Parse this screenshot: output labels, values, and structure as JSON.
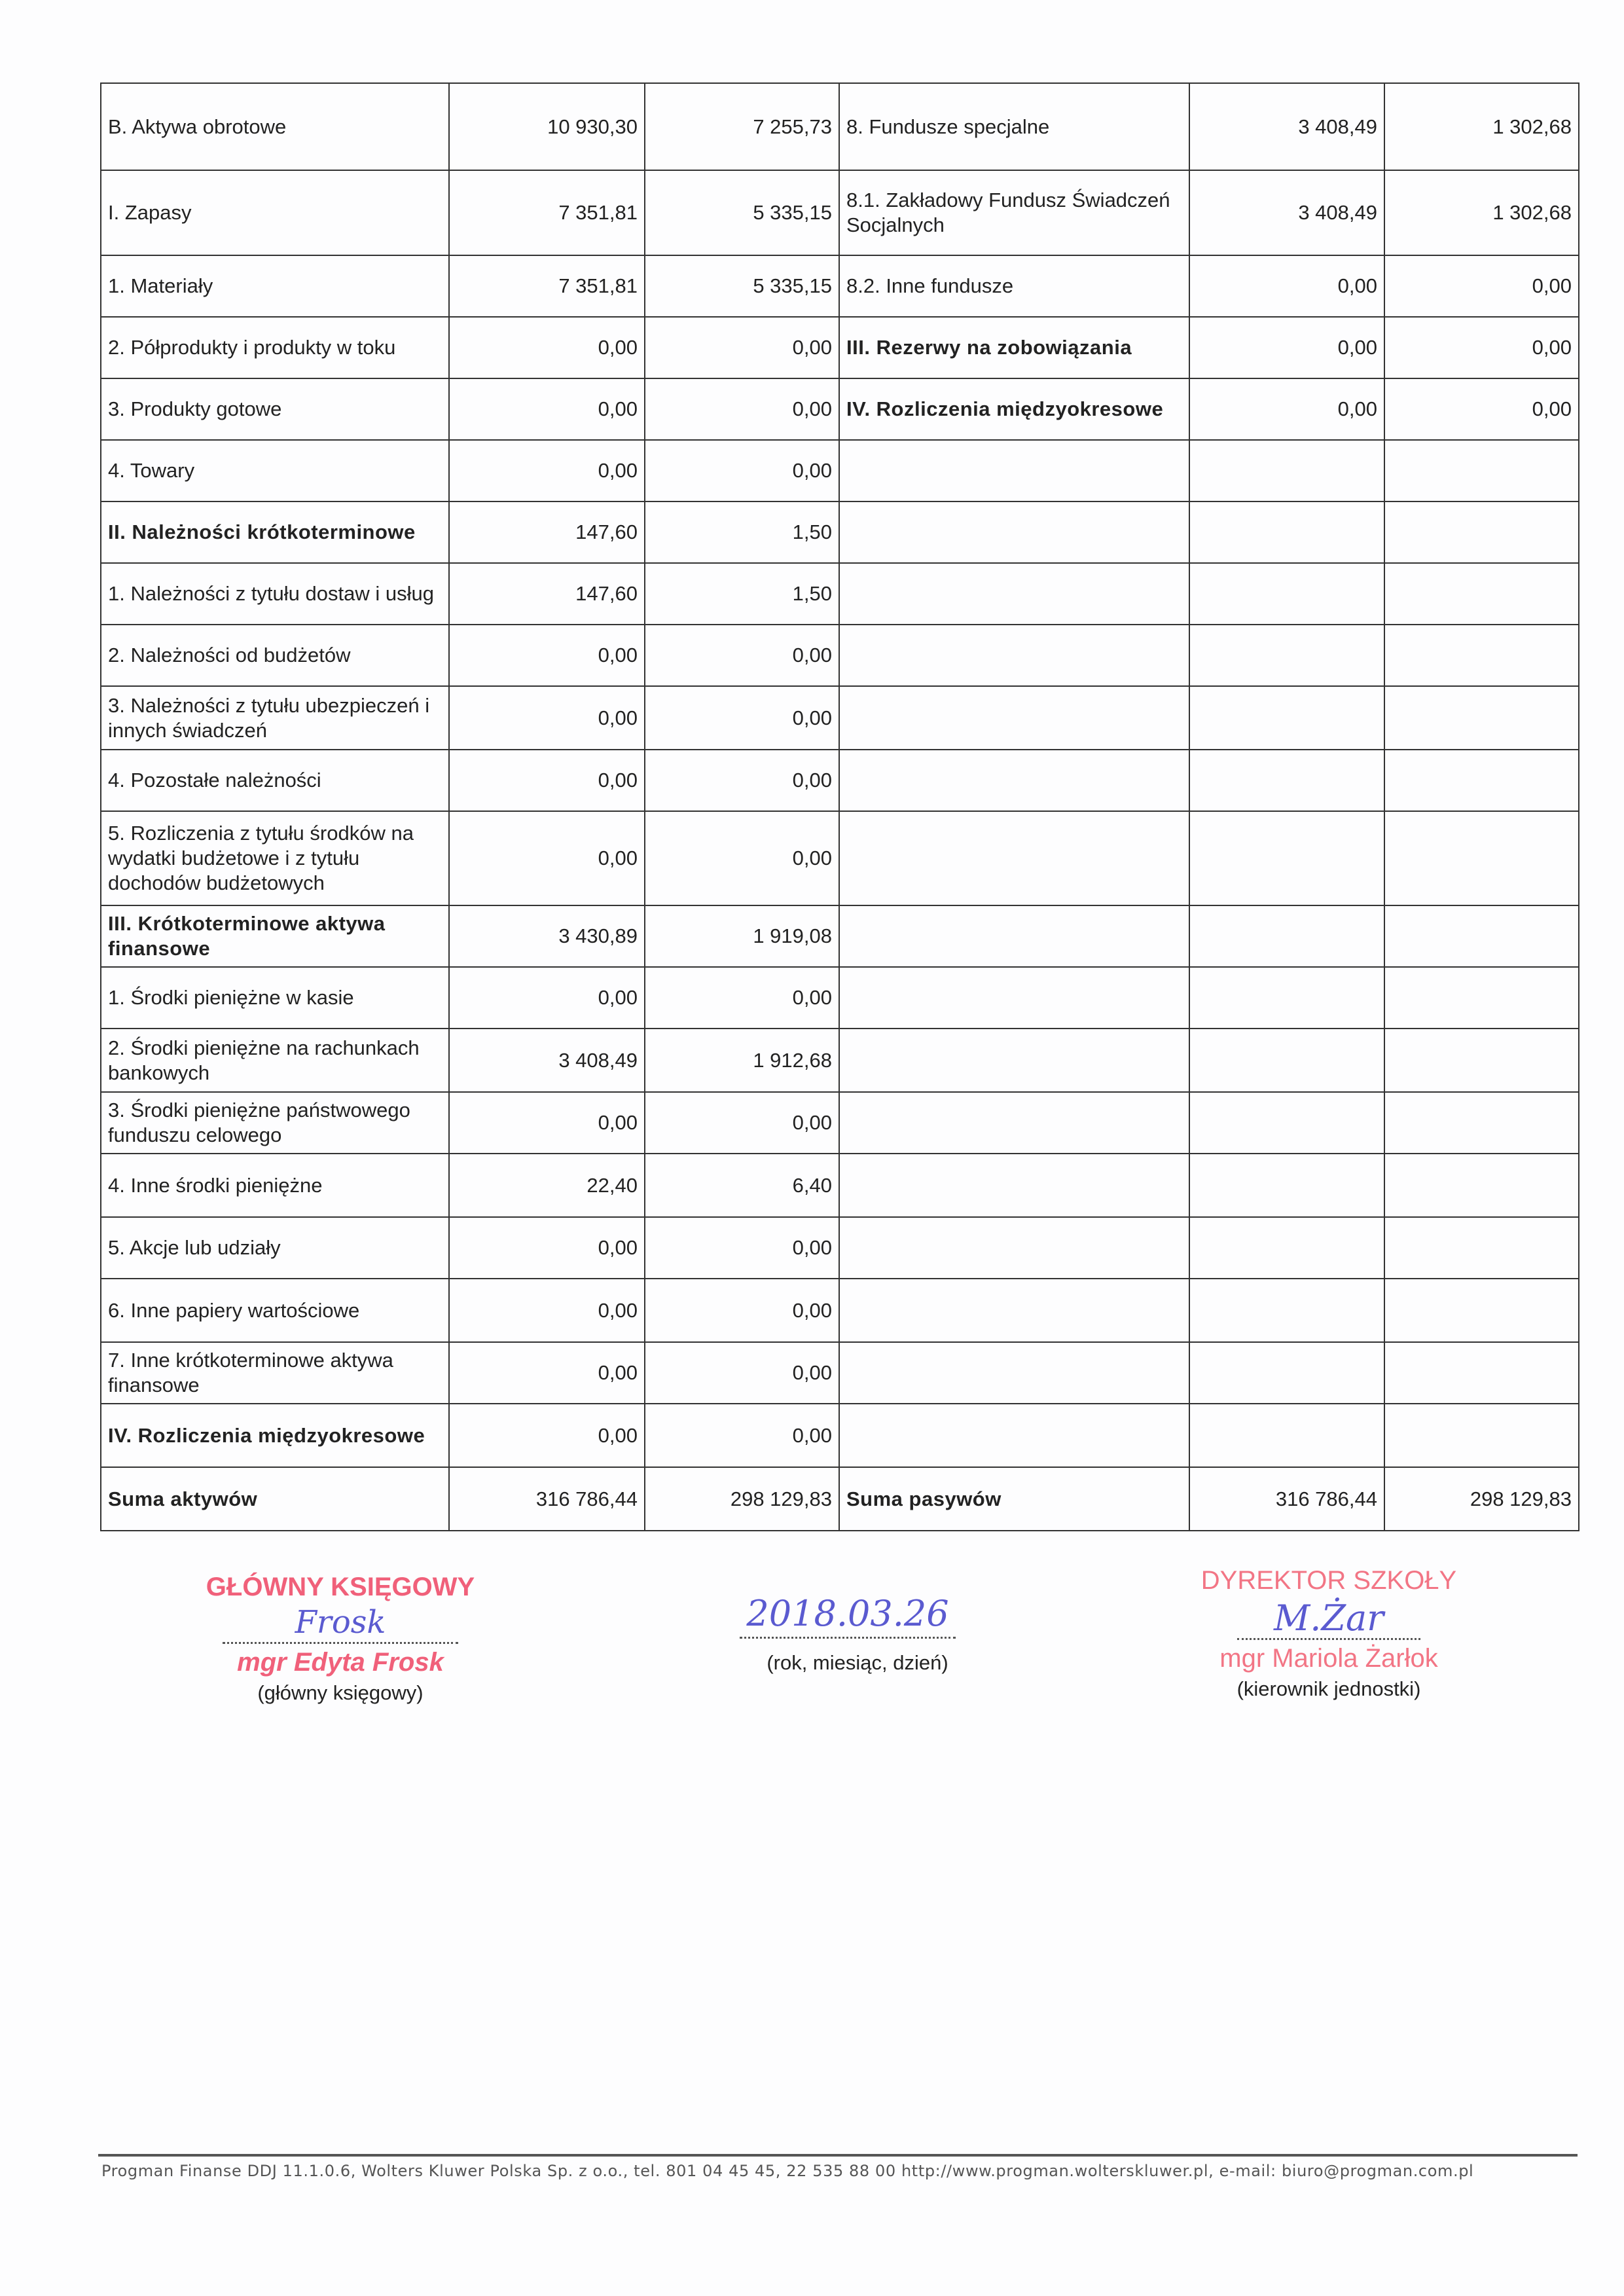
{
  "rows": [
    {
      "l": "B. Aktywa obrotowe",
      "l1": "10 930,30",
      "l2": "7 255,73",
      "lb": false,
      "r": "8. Fundusze specjalne",
      "r1": "3 408,49",
      "r2": "1 302,68",
      "rb": false
    },
    {
      "l": "I. Zapasy",
      "l1": "7 351,81",
      "l2": "5 335,15",
      "lb": false,
      "r": "8.1. Zakładowy Fundusz Świadczeń Socjalnych",
      "r1": "3 408,49",
      "r2": "1 302,68",
      "rb": false
    },
    {
      "l": "1. Materiały",
      "l1": "7 351,81",
      "l2": "5 335,15",
      "lb": false,
      "r": "8.2. Inne fundusze",
      "r1": "0,00",
      "r2": "0,00",
      "rb": false
    },
    {
      "l": "2. Półprodukty i produkty w toku",
      "l1": "0,00",
      "l2": "0,00",
      "lb": false,
      "r": "III. Rezerwy na zobowiązania",
      "r1": "0,00",
      "r2": "0,00",
      "rb": true
    },
    {
      "l": "3. Produkty gotowe",
      "l1": "0,00",
      "l2": "0,00",
      "lb": false,
      "r": "IV. Rozliczenia międzyokresowe",
      "r1": "0,00",
      "r2": "0,00",
      "rb": true
    },
    {
      "l": "4. Towary",
      "l1": "0,00",
      "l2": "0,00",
      "lb": false,
      "r": "",
      "r1": "",
      "r2": "",
      "rb": false
    },
    {
      "l": "II. Należności krótkoterminowe",
      "l1": "147,60",
      "l2": "1,50",
      "lb": true,
      "r": "",
      "r1": "",
      "r2": "",
      "rb": false
    },
    {
      "l": "1. Należności z tytułu dostaw i usług",
      "l1": "147,60",
      "l2": "1,50",
      "lb": false,
      "r": "",
      "r1": "",
      "r2": "",
      "rb": false
    },
    {
      "l": "2. Należności od budżetów",
      "l1": "0,00",
      "l2": "0,00",
      "lb": false,
      "r": "",
      "r1": "",
      "r2": "",
      "rb": false
    },
    {
      "l": "3. Należności z tytułu ubezpieczeń i innych świadczeń",
      "l1": "0,00",
      "l2": "0,00",
      "lb": false,
      "r": "",
      "r1": "",
      "r2": "",
      "rb": false
    },
    {
      "l": "4. Pozostałe należności",
      "l1": "0,00",
      "l2": "0,00",
      "lb": false,
      "r": "",
      "r1": "",
      "r2": "",
      "rb": false
    },
    {
      "l": "5. Rozliczenia z tytułu środków na wydatki budżetowe i z tytułu dochodów budżetowych",
      "l1": "0,00",
      "l2": "0,00",
      "lb": false,
      "r": "",
      "r1": "",
      "r2": "",
      "rb": false
    },
    {
      "l": "III. Krótkoterminowe aktywa finansowe",
      "l1": "3 430,89",
      "l2": "1 919,08",
      "lb": true,
      "r": "",
      "r1": "",
      "r2": "",
      "rb": false
    },
    {
      "l": "1. Środki pieniężne w kasie",
      "l1": "0,00",
      "l2": "0,00",
      "lb": false,
      "r": "",
      "r1": "",
      "r2": "",
      "rb": false
    },
    {
      "l": "2. Środki pieniężne na rachunkach bankowych",
      "l1": "3 408,49",
      "l2": "1 912,68",
      "lb": false,
      "r": "",
      "r1": "",
      "r2": "",
      "rb": false
    },
    {
      "l": "3. Środki pieniężne państwowego funduszu celowego",
      "l1": "0,00",
      "l2": "0,00",
      "lb": false,
      "r": "",
      "r1": "",
      "r2": "",
      "rb": false
    },
    {
      "l": "4. Inne środki pieniężne",
      "l1": "22,40",
      "l2": "6,40",
      "lb": false,
      "r": "",
      "r1": "",
      "r2": "",
      "rb": false
    },
    {
      "l": "5. Akcje lub udziały",
      "l1": "0,00",
      "l2": "0,00",
      "lb": false,
      "r": "",
      "r1": "",
      "r2": "",
      "rb": false
    },
    {
      "l": "6. Inne papiery wartościowe",
      "l1": "0,00",
      "l2": "0,00",
      "lb": false,
      "r": "",
      "r1": "",
      "r2": "",
      "rb": false
    },
    {
      "l": "7. Inne krótkoterminowe aktywa finansowe",
      "l1": "0,00",
      "l2": "0,00",
      "lb": false,
      "r": "",
      "r1": "",
      "r2": "",
      "rb": false
    },
    {
      "l": "IV. Rozliczenia międzyokresowe",
      "l1": "0,00",
      "l2": "0,00",
      "lb": true,
      "r": "",
      "r1": "",
      "r2": "",
      "rb": false
    },
    {
      "l": "Suma aktywów",
      "l1": "316 786,44",
      "l2": "298 129,83",
      "lb": true,
      "r": "Suma pasywów",
      "r1": "316 786,44",
      "r2": "298 129,83",
      "rb": true
    }
  ],
  "signatures": {
    "accountant": {
      "stamp_title": "GŁÓWNY KSIĘGOWY",
      "stamp_name": "mgr Edyta Frosk",
      "handwriting": "Frosk",
      "caption": "(główny księgowy)"
    },
    "date": {
      "handwriting": "2018.03.26",
      "caption": "(rok, miesiąc, dzień)"
    },
    "director": {
      "stamp_title": "DYREKTOR SZKOŁY",
      "stamp_name": "mgr Mariola Żarłok",
      "handwriting": "M.Żar",
      "caption": "(kierownik jednostki)"
    }
  },
  "footer": "Progman Finanse DDJ 11.1.0.6, Wolters Kluwer Polska Sp. z o.o., tel. 801 04 45 45, 22 535 88 00 http://www.progman.wolterskluwer.pl, e-mail: biuro@progman.com.pl",
  "colors": {
    "stamp": "#f0607a",
    "ink": "#5a5ad0"
  }
}
